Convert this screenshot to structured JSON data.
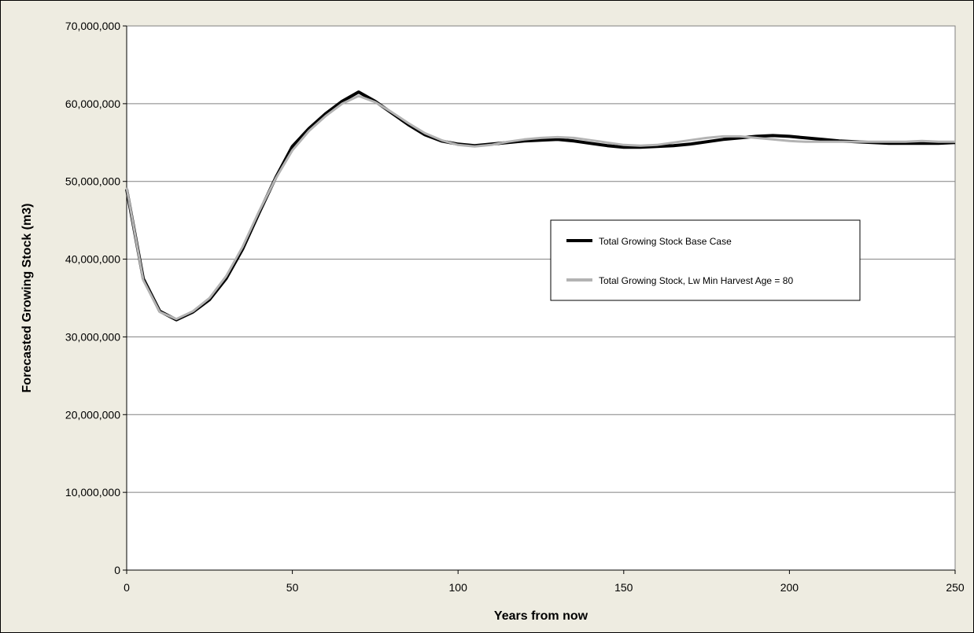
{
  "chart_data": {
    "type": "line",
    "title": "",
    "xlabel": "Years from now",
    "ylabel": "Forecasted Growing Stock (m3)",
    "xlim": [
      0,
      250
    ],
    "ylim": [
      0,
      70000000
    ],
    "x_ticks": [
      0,
      50,
      100,
      150,
      200,
      250
    ],
    "x_tick_labels": [
      "0",
      "50",
      "100",
      "150",
      "200",
      "250"
    ],
    "y_ticks": [
      0,
      10000000,
      20000000,
      30000000,
      40000000,
      50000000,
      60000000,
      70000000
    ],
    "y_tick_labels": [
      "0",
      "10,000,000",
      "20,000,000",
      "30,000,000",
      "40,000,000",
      "50,000,000",
      "60,000,000",
      "70,000,000"
    ],
    "grid": "horizontal",
    "legend_position": "center-right",
    "x": [
      0,
      5,
      10,
      15,
      20,
      25,
      30,
      35,
      40,
      45,
      50,
      55,
      60,
      65,
      70,
      75,
      80,
      85,
      90,
      95,
      100,
      105,
      110,
      115,
      120,
      125,
      130,
      135,
      140,
      145,
      150,
      155,
      160,
      165,
      170,
      175,
      180,
      185,
      190,
      195,
      200,
      205,
      210,
      215,
      220,
      225,
      230,
      235,
      240,
      245,
      250
    ],
    "series": [
      {
        "name": "Total Growing Stock Base Case",
        "color": "#000000",
        "values": [
          49000000,
          37500000,
          33300000,
          32200000,
          33200000,
          34800000,
          37500000,
          41300000,
          46000000,
          50500000,
          54500000,
          56800000,
          58700000,
          60300000,
          61500000,
          60300000,
          58800000,
          57300000,
          56000000,
          55200000,
          54800000,
          54600000,
          54800000,
          55000000,
          55200000,
          55300000,
          55400000,
          55200000,
          54900000,
          54600000,
          54400000,
          54400000,
          54500000,
          54600000,
          54800000,
          55100000,
          55400000,
          55600000,
          55800000,
          55900000,
          55800000,
          55600000,
          55400000,
          55200000,
          55100000,
          55000000,
          54900000,
          54900000,
          54900000,
          54900000,
          55000000
        ]
      },
      {
        "name": "Total Growing Stock, Lw Min Harvest Age = 80",
        "color": "#b3b3b3",
        "values": [
          49200000,
          37300000,
          33200000,
          32300000,
          33300000,
          35000000,
          37800000,
          41600000,
          46200000,
          50400000,
          54000000,
          56500000,
          58400000,
          60000000,
          61000000,
          60200000,
          58900000,
          57500000,
          56200000,
          55300000,
          54700000,
          54500000,
          54700000,
          55100000,
          55400000,
          55600000,
          55700000,
          55600000,
          55300000,
          55000000,
          54700000,
          54600000,
          54700000,
          55000000,
          55300000,
          55600000,
          55800000,
          55800000,
          55600000,
          55400000,
          55200000,
          55100000,
          55100000,
          55100000,
          55100000,
          55100000,
          55100000,
          55100000,
          55200000,
          55100000,
          55100000
        ]
      }
    ]
  },
  "legend": {
    "base_label": "Total Growing Stock Base Case",
    "alt_label": "Total Growing Stock, Lw Min Harvest Age = 80"
  },
  "colors": {
    "background": "#eeece1",
    "plot_background": "#ffffff",
    "gridline": "#808080"
  }
}
